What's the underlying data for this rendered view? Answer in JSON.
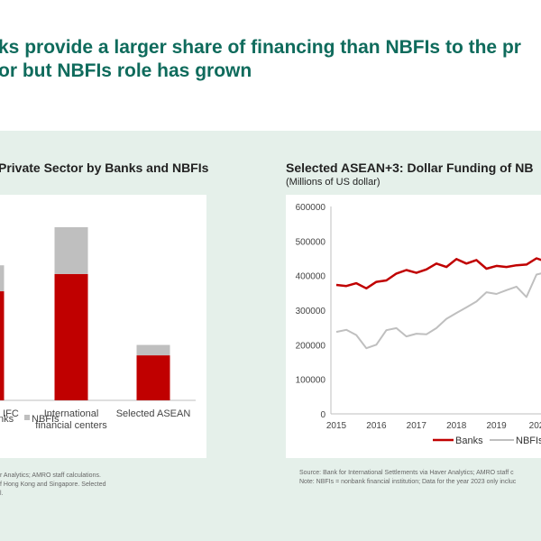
{
  "slide": {
    "title_line1": "ks provide a larger share of financing than NBFIs to the pr",
    "title_line2": "or but NBFIs role has grown",
    "colors": {
      "title": "#0f6b5c",
      "banks": "#c00000",
      "nbfis": "#bfbfbf",
      "band": "#e5f0ea"
    }
  },
  "left_chart": {
    "title": "Private Sector by Banks and NBFIs",
    "source_line1": "r Analytics; AMRO staff calculations.",
    "source_line2": "f Hong Kong and Singapore. Selected",
    "source_line3": "l."
  },
  "right_chart": {
    "title": "Selected ASEAN+3: Dollar Funding of NB",
    "subtitle": "(Millions of US dollar)",
    "source_line1": "Source: Bank for International Settlements via Haver Analytics; AMRO staff c",
    "source_line2": "Note: NBFIs = nonbank financial institution; Data for the year 2023 only incluc"
  },
  "chart_data": [
    {
      "type": "bar",
      "stacked": true,
      "title": "Private Sector by Banks and NBFIs",
      "categories": [
        "IFC",
        "International financial centers",
        "Selected ASEAN"
      ],
      "category_labels": [
        [
          "IFC"
        ],
        [
          "International",
          "financial centers"
        ],
        [
          "Selected ASEAN"
        ]
      ],
      "series": [
        {
          "name": "Banks",
          "color": "#c00000",
          "values": [
            0.63,
            0.73,
            0.26
          ]
        },
        {
          "name": "NBFIs",
          "color": "#bfbfbf",
          "values": [
            0.15,
            0.27,
            0.06
          ]
        }
      ],
      "value_note": "relative heights (no y-axis shown); tallest stack = 1.0",
      "ylim": [
        0,
        1.0
      ],
      "legend": [
        "nks",
        "NBFIs"
      ],
      "legend_position": "bottom-left",
      "grid": false
    },
    {
      "type": "line",
      "title": "Selected ASEAN+3: Dollar Funding of NB",
      "ylabel": "(Millions of US dollar)",
      "ylim": [
        0,
        600000
      ],
      "yticks": [
        "0",
        "100000",
        "200000",
        "300000",
        "400000",
        "500000",
        "600000"
      ],
      "ytick_values": [
        0,
        100000,
        200000,
        300000,
        400000,
        500000,
        600000
      ],
      "xticks": [
        "2015",
        "2016",
        "2017",
        "2018",
        "2019",
        "202"
      ],
      "x_start": 2015,
      "x_step": 0.25,
      "series": [
        {
          "name": "Banks",
          "color": "#c00000",
          "values": [
            373000,
            370000,
            378000,
            363000,
            382000,
            386000,
            406000,
            416000,
            408000,
            418000,
            435000,
            425000,
            448000,
            435000,
            445000,
            420000,
            428000,
            425000,
            430000,
            432000,
            450000,
            440000
          ]
        },
        {
          "name": "NBFIs",
          "color": "#bfbfbf",
          "values": [
            237000,
            243000,
            228000,
            190000,
            200000,
            242000,
            248000,
            224000,
            232000,
            230000,
            248000,
            275000,
            292000,
            308000,
            325000,
            352000,
            347000,
            358000,
            368000,
            338000,
            403000,
            410000
          ]
        }
      ],
      "legend": [
        "Banks",
        "NBFIs"
      ],
      "legend_position": "bottom-right",
      "grid": false
    }
  ]
}
